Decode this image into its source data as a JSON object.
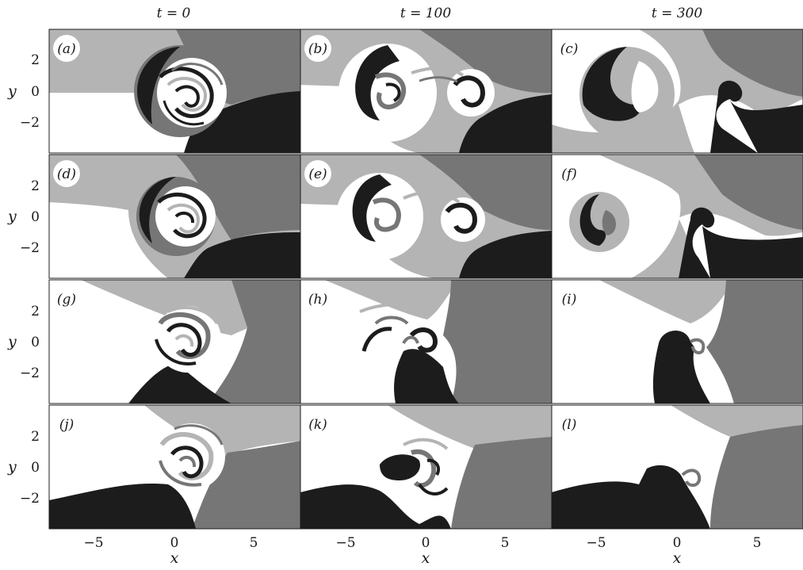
{
  "figure": {
    "column_titles": [
      "t = 0",
      "t = 100",
      "t = 300"
    ],
    "y_axis_label": "y",
    "x_axis_label": "x",
    "y_tick_labels": [
      "2",
      "0",
      "−2"
    ],
    "x_tick_labels": [
      "−5",
      "0",
      "5"
    ],
    "panel_labels": [
      [
        "(a)",
        "(b)",
        "(c)"
      ],
      [
        "(d)",
        "(e)",
        "(f)"
      ],
      [
        "(g)",
        "(h)",
        "(i)"
      ],
      [
        "(j)",
        "(k)",
        "(l)"
      ]
    ],
    "colors": {
      "white": "#ffffff",
      "light_gray": "#b4b4b4",
      "dark_gray": "#767676",
      "black": "#1c1c1c"
    }
  }
}
